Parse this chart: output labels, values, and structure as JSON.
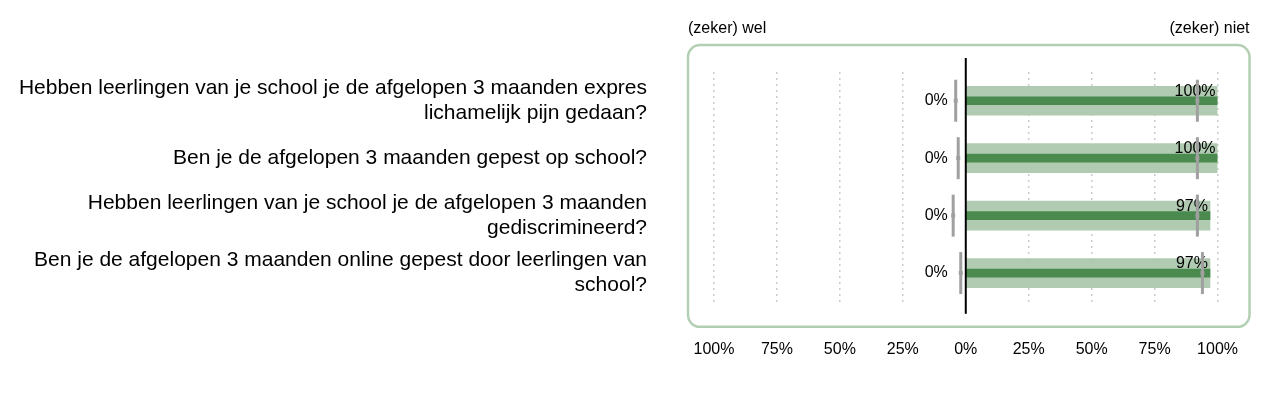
{
  "chart_data": {
    "type": "bar",
    "orientation": "horizontal",
    "categories": [
      "Hebben leerlingen van je school je de afgelopen 3 maanden expres lichamelijk pijn gedaan?",
      "Ben je de afgelopen 3 maanden gepest op school?",
      "Hebben leerlingen van je school je de afgelopen 3 maanden gediscrimineerd?",
      "Ben je de afgelopen 3 maanden online gepest door leerlingen van school?"
    ],
    "series": [
      {
        "color": "#b0cbb1",
        "values": [
          100,
          100,
          97,
          97
        ],
        "value_labels": [
          "100%",
          "100%",
          "97%",
          "97%"
        ]
      },
      {
        "color": "#4a8a4e",
        "values": [
          0,
          0,
          0,
          0
        ],
        "value_labels": [
          "0%",
          "0%",
          "0%",
          "0%"
        ]
      },
      {
        "color": "#4a8a4e",
        "values": [
          100,
          100,
          97,
          97
        ]
      },
      {
        "type": "scatter",
        "color": "#a0a0a0",
        "x": [
          "Hebben leerlingen van je school je de afgelopen 3 maanden expres lichamelijk pijn gedaan?",
          "Ben je de afgelopen 3 maanden gepest op school?",
          "Hebben leerlingen van je school je de afgelopen 3 maanden gediscrimineerd?",
          "Ben je de afgelopen 3 maanden online gepest door leerlingen van school?",
          "Hebben leerlingen van je school je de afgelopen 3 maanden expres lichamelijk pijn gedaan?",
          "Ben je de afgelopen 3 maanden gepest op school?",
          "Hebben leerlingen van je school je de afgelopen 3 maanden gediscrimineerd?",
          "Ben je de afgelopen 3 maanden online gepest door leerlingen van school?"
        ],
        "values": [
          -4,
          -3,
          -5,
          -2,
          92,
          92,
          92,
          94
        ]
      }
    ],
    "xlim": [
      -100,
      100
    ],
    "xticks": [
      {
        "value": -100,
        "label": "100%"
      },
      {
        "value": -75,
        "label": "75%"
      },
      {
        "value": -50,
        "label": "50%"
      },
      {
        "value": -25,
        "label": "25%"
      },
      {
        "value": 0,
        "label": "0%"
      },
      {
        "value": 25,
        "label": "25%"
      },
      {
        "value": 50,
        "label": "50%"
      },
      {
        "value": 75,
        "label": "75%"
      },
      {
        "value": 100,
        "label": "100%"
      }
    ],
    "grid": "x",
    "legend": false,
    "annotations": [
      "(zeker) wel",
      "(zeker) niet"
    ]
  }
}
